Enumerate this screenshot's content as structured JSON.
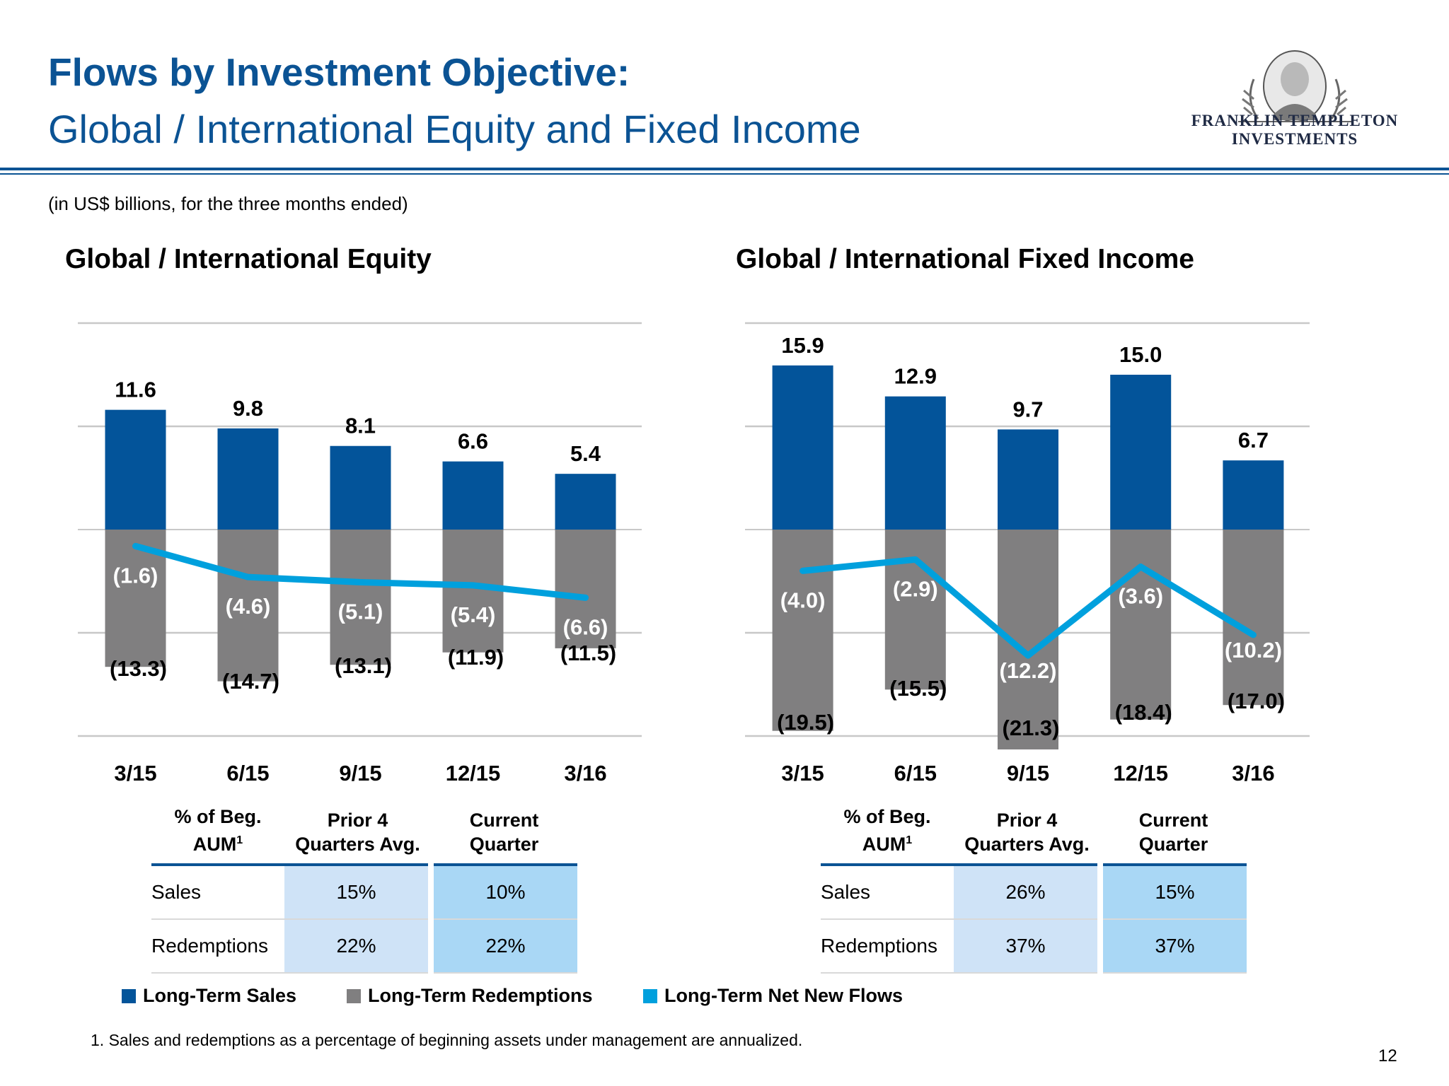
{
  "header": {
    "title": "Flows by Investment Objective:",
    "subtitle": "Global / International Equity and Fixed Income",
    "logo_line1": "FRANKLIN TEMPLETON",
    "logo_line2": "INVESTMENTS"
  },
  "units_note": "(in US$ billions, for the three months ended)",
  "colors": {
    "brand_blue": "#0b5394",
    "sales": "#03549a",
    "redemptions": "#807f80",
    "net_flows": "#00a0dd",
    "prior_cell": "#cfe3f7",
    "current_cell": "#a9d7f5"
  },
  "chart_data": [
    {
      "type": "bar",
      "title": "Global / International Equity",
      "categories": [
        "3/15",
        "6/15",
        "9/15",
        "12/15",
        "3/16"
      ],
      "ylim": [
        -20,
        20
      ],
      "grid": true,
      "series": [
        {
          "name": "Long-Term Sales",
          "kind": "bar",
          "values": [
            11.6,
            9.8,
            8.1,
            6.6,
            5.4
          ],
          "labels": [
            "11.6",
            "9.8",
            "8.1",
            "6.6",
            "5.4"
          ]
        },
        {
          "name": "Long-Term Redemptions",
          "kind": "bar",
          "values": [
            -13.3,
            -14.7,
            -13.1,
            -11.9,
            -11.5
          ],
          "labels": [
            "(13.3)",
            "(14.7)",
            "(13.1)",
            "(11.9)",
            "(11.5)"
          ]
        },
        {
          "name": "Long-Term Net New Flows",
          "kind": "line",
          "values": [
            -1.6,
            -4.6,
            -5.1,
            -5.4,
            -6.6
          ],
          "labels": [
            "(1.6)",
            "(4.6)",
            "(5.1)",
            "(5.4)",
            "(6.6)"
          ]
        }
      ]
    },
    {
      "type": "bar",
      "title": "Global / International Fixed Income",
      "categories": [
        "3/15",
        "6/15",
        "9/15",
        "12/15",
        "3/16"
      ],
      "ylim": [
        -20,
        20
      ],
      "grid": true,
      "series": [
        {
          "name": "Long-Term Sales",
          "kind": "bar",
          "values": [
            15.9,
            12.9,
            9.7,
            15.0,
            6.7
          ],
          "labels": [
            "15.9",
            "12.9",
            "9.7",
            "15.0",
            "6.7"
          ]
        },
        {
          "name": "Long-Term Redemptions",
          "kind": "bar",
          "values": [
            -19.5,
            -15.5,
            -21.3,
            -18.4,
            -17.0
          ],
          "labels": [
            "(19.5)",
            "(15.5)",
            "(21.3)",
            "(18.4)",
            "(17.0)"
          ]
        },
        {
          "name": "Long-Term Net New Flows",
          "kind": "line",
          "values": [
            -4.0,
            -2.9,
            -12.2,
            -3.6,
            -10.2
          ],
          "labels": [
            "(4.0)",
            "(2.9)",
            "(12.2)",
            "(3.6)",
            "(10.2)"
          ]
        }
      ]
    }
  ],
  "tables": [
    {
      "headers": {
        "col1_line1": "% of Beg.",
        "col1_line2": "AUM",
        "col1_sup": "1",
        "col2_line1": "Prior 4",
        "col2_line2": "Quarters Avg.",
        "col3_line1": "Current",
        "col3_line2": "Quarter"
      },
      "rows": [
        {
          "label": "Sales",
          "prior": "15%",
          "current": "10%"
        },
        {
          "label": "Redemptions",
          "prior": "22%",
          "current": "22%"
        }
      ]
    },
    {
      "headers": {
        "col1_line1": "% of Beg.",
        "col1_line2": "AUM",
        "col1_sup": "1",
        "col2_line1": "Prior 4",
        "col2_line2": "Quarters Avg.",
        "col3_line1": "Current",
        "col3_line2": "Quarter"
      },
      "rows": [
        {
          "label": "Sales",
          "prior": "26%",
          "current": "15%"
        },
        {
          "label": "Redemptions",
          "prior": "37%",
          "current": "37%"
        }
      ]
    }
  ],
  "legend": [
    {
      "label": "Long-Term Sales",
      "color": "#03549a"
    },
    {
      "label": "Long-Term Redemptions",
      "color": "#807f80"
    },
    {
      "label": "Long-Term Net New Flows",
      "color": "#00a0dd"
    }
  ],
  "footnote": "1.  Sales and redemptions as a percentage of beginning assets under management are annualized.",
  "page_number": "12"
}
